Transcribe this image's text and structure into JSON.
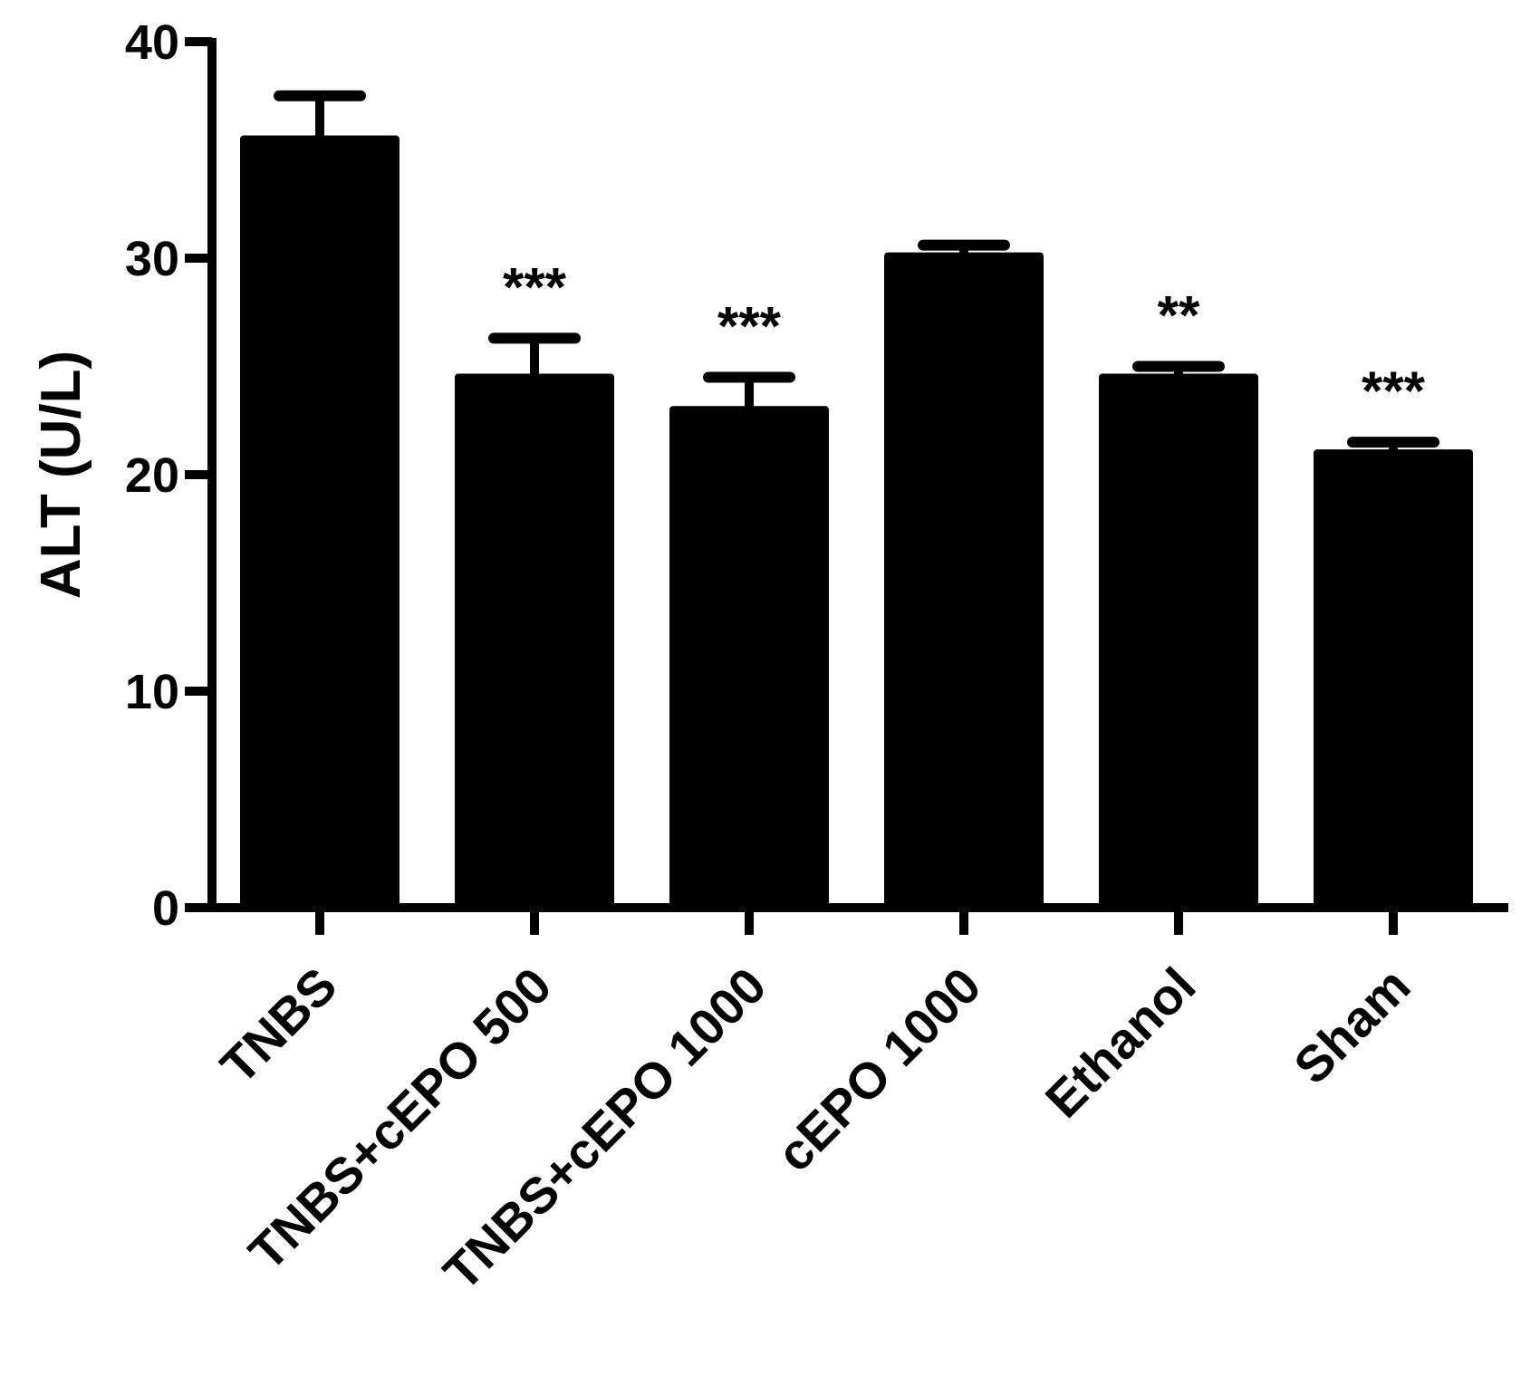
{
  "chart_data": {
    "type": "bar",
    "title": "",
    "xlabel": "",
    "ylabel": "ALT (U/L)",
    "ylim": [
      0,
      40
    ],
    "yticks": [
      0,
      10,
      20,
      30,
      40
    ],
    "grid": false,
    "categories": [
      "TNBS",
      "TNBS+cEPO 500",
      "TNBS+cEPO 1000",
      "cEPO 1000",
      "Ethanol",
      "Sham"
    ],
    "values": [
      35.5,
      24.5,
      23.0,
      30.1,
      24.5,
      21.0
    ],
    "errors": [
      2.0,
      1.8,
      1.5,
      0.5,
      0.5,
      0.5
    ],
    "significance": [
      "",
      "***",
      "***",
      "",
      "**",
      "***"
    ],
    "bar_color": "#000000"
  }
}
